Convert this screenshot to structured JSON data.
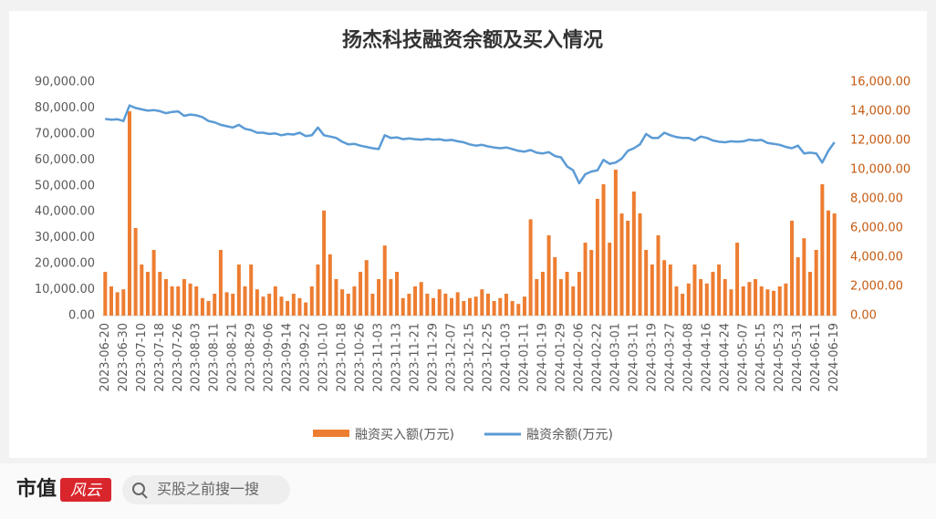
{
  "chart_data": {
    "type": "bar-line",
    "title": "扬杰科技融资余额及买入情况",
    "categories": [
      "2023-06-20",
      null,
      null,
      "2023-06-30",
      null,
      null,
      "2023-07-10",
      null,
      null,
      "2023-07-18",
      null,
      null,
      "2023-07-26",
      null,
      null,
      "2023-08-03",
      null,
      null,
      "2023-08-11",
      null,
      null,
      "2023-08-21",
      null,
      null,
      "2023-08-29",
      null,
      null,
      "2023-09-06",
      null,
      null,
      "2023-09-14",
      null,
      null,
      "2023-09-22",
      null,
      null,
      "2023-10-10",
      null,
      null,
      "2023-10-18",
      null,
      null,
      "2023-10-26",
      null,
      null,
      "2023-11-03",
      null,
      null,
      "2023-11-13",
      null,
      null,
      "2023-11-21",
      null,
      null,
      "2023-11-29",
      null,
      null,
      "2023-12-07",
      null,
      null,
      "2023-12-15",
      null,
      null,
      "2023-12-25",
      null,
      null,
      "2024-01-03",
      null,
      null,
      "2024-01-11",
      null,
      null,
      "2024-01-19",
      null,
      null,
      "2024-01-29",
      null,
      null,
      "2024-02-06",
      null,
      null,
      "2024-02-22",
      null,
      null,
      "2024-03-01",
      null,
      null,
      "2024-03-11",
      null,
      null,
      "2024-03-19",
      null,
      null,
      "2024-03-27",
      null,
      null,
      "2024-04-08",
      null,
      null,
      "2024-04-16",
      null,
      null,
      "2024-04-24",
      null,
      null,
      "2024-05-07",
      null,
      null,
      "2024-05-15",
      null,
      null,
      "2024-05-23",
      null,
      null,
      "2024-05-31",
      null,
      null,
      "2024-06-11",
      null,
      null,
      "2024-06-19"
    ],
    "series": [
      {
        "name": "融资买入额(万元)",
        "type": "bar",
        "axis": "y2",
        "color": "#ed7d31",
        "values": [
          3000,
          2000,
          1600,
          1800,
          14000,
          6000,
          3500,
          3000,
          4500,
          3000,
          2500,
          2000,
          2000,
          2500,
          2200,
          2000,
          1200,
          1000,
          1500,
          4500,
          1600,
          1500,
          3500,
          2000,
          3500,
          1800,
          1300,
          1500,
          2000,
          1300,
          1000,
          1500,
          1200,
          900,
          2000,
          3500,
          7200,
          4200,
          2500,
          1800,
          1500,
          2000,
          3000,
          3800,
          1500,
          2500,
          4800,
          2500,
          3000,
          1200,
          1500,
          2000,
          2300,
          1500,
          1200,
          1800,
          1500,
          1200,
          1600,
          1000,
          1200,
          1300,
          1800,
          1500,
          1000,
          1200,
          1500,
          1000,
          800,
          1300,
          6600,
          2500,
          3000,
          5500,
          4000,
          2500,
          3000,
          2000,
          3000,
          5000,
          4500,
          8000,
          9000,
          5000,
          10000,
          7000,
          6500,
          8500,
          7000,
          4500,
          3500,
          5500,
          3800,
          3500,
          2000,
          1500,
          2200,
          3500,
          2500,
          2200,
          3000,
          3500,
          2500,
          1800,
          5000,
          2000,
          2300,
          2500,
          2000,
          1800,
          1700,
          2000,
          2200,
          6500,
          4000,
          5300,
          3000,
          4500,
          9000,
          7200,
          7000
        ]
      },
      {
        "name": "融资余额(万元)",
        "type": "line",
        "axis": "y",
        "color": "#5b9bd5",
        "values": [
          75800,
          75500,
          75700,
          75000,
          81000,
          80000,
          79500,
          79000,
          79200,
          78800,
          78000,
          78500,
          78700,
          77000,
          77500,
          77200,
          76500,
          75000,
          74500,
          73500,
          73000,
          72500,
          73500,
          72000,
          71500,
          70500,
          70500,
          70000,
          70200,
          69500,
          70000,
          69800,
          70500,
          69200,
          69500,
          72500,
          69500,
          69000,
          68500,
          67000,
          66000,
          66200,
          65500,
          65000,
          64500,
          64200,
          69500,
          68500,
          68700,
          68000,
          68300,
          68000,
          67800,
          68100,
          67800,
          68000,
          67500,
          67700,
          67200,
          66800,
          66000,
          65500,
          65800,
          65200,
          64800,
          64500,
          64800,
          64200,
          63500,
          63200,
          63800,
          62800,
          62500,
          63000,
          61500,
          61000,
          57500,
          56000,
          51000,
          54500,
          55500,
          56000,
          60000,
          58500,
          59000,
          60500,
          63500,
          64500,
          66000,
          70000,
          68500,
          68500,
          70500,
          69500,
          68800,
          68500,
          68500,
          67500,
          69000,
          68500,
          67500,
          67000,
          66800,
          67200,
          67000,
          67200,
          67800,
          67500,
          67700,
          66500,
          66200,
          65800,
          65000,
          64500,
          65500,
          62500,
          62800,
          62500,
          59000,
          63500,
          66800
        ]
      }
    ],
    "ylim": [
      0,
      90000
    ],
    "yticks": [
      {
        "value": 0,
        "label": "0.00"
      },
      {
        "value": 10000,
        "label": "10,000.00"
      },
      {
        "value": 20000,
        "label": "20,000.00"
      },
      {
        "value": 30000,
        "label": "30,000.00"
      },
      {
        "value": 40000,
        "label": "40,000.00"
      },
      {
        "value": 50000,
        "label": "50,000.00"
      },
      {
        "value": 60000,
        "label": "60,000.00"
      },
      {
        "value": 70000,
        "label": "70,000.00"
      },
      {
        "value": 80000,
        "label": "80,000.00"
      },
      {
        "value": 90000,
        "label": "90,000.00"
      }
    ],
    "y2lim": [
      0,
      16000
    ],
    "y2ticks": [
      {
        "value": 0,
        "label": "0.00"
      },
      {
        "value": 2000,
        "label": "2,000.00"
      },
      {
        "value": 4000,
        "label": "4,000.00"
      },
      {
        "value": 6000,
        "label": "6,000.00"
      },
      {
        "value": 8000,
        "label": "8,000.00"
      },
      {
        "value": 10000,
        "label": "10,000.00"
      },
      {
        "value": 12000,
        "label": "12,000.00"
      },
      {
        "value": 14000,
        "label": "14,000.00"
      },
      {
        "value": 16000,
        "label": "16,000.00"
      }
    ],
    "legend": "bottom"
  },
  "footer": {
    "brand": "市值",
    "logo": "风云",
    "search": "买股之前搜一搜"
  }
}
